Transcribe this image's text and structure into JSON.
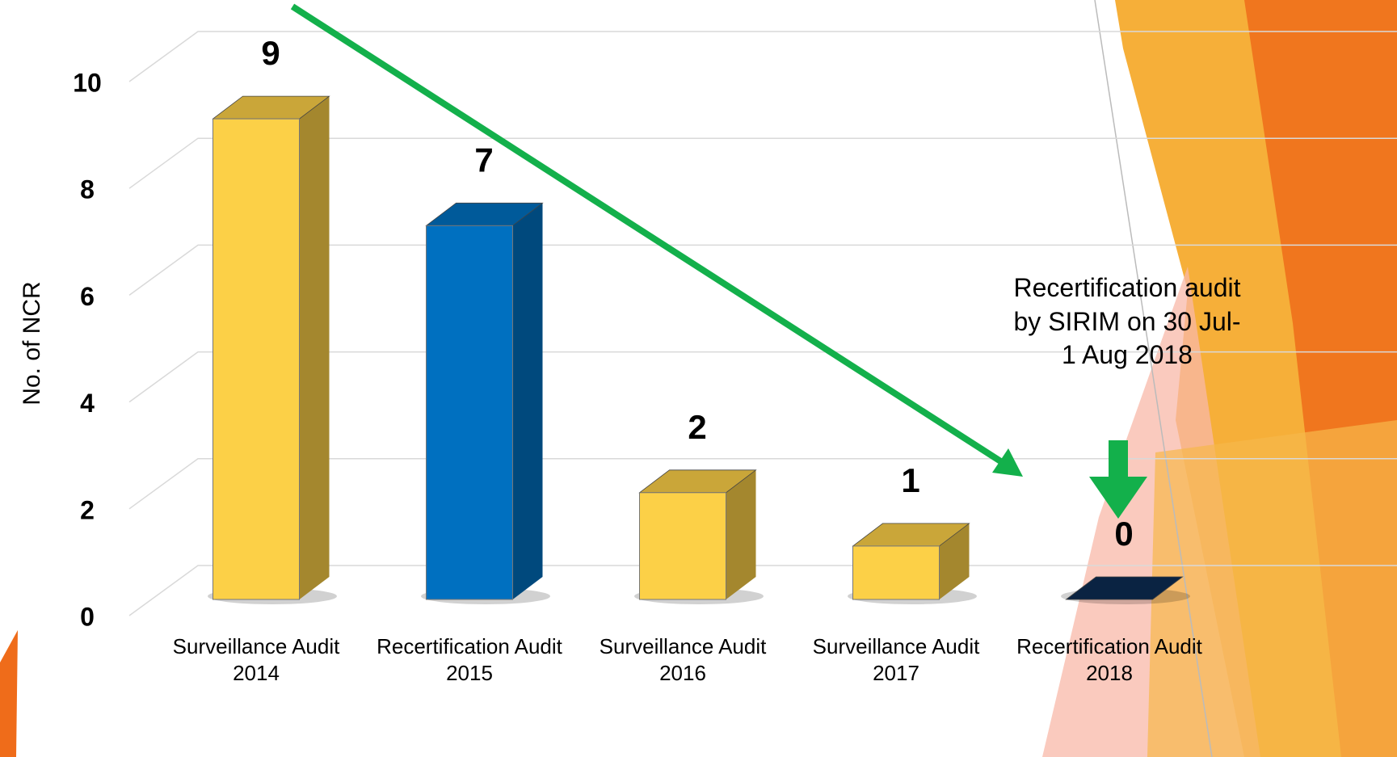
{
  "chart_data": {
    "type": "bar3d",
    "y_label": "No. of NCR",
    "categories": [
      "Surveillance Audit 2014",
      "Recertification Audit 2015",
      "Surveillance Audit 2016",
      "Surveillance Audit 2017",
      "Recertification Audit 2018"
    ],
    "values": [
      9,
      7,
      2,
      1,
      0
    ],
    "colors": [
      "#fcd047",
      "#0070c0",
      "#fcd047",
      "#fcd047",
      "#0d2c52"
    ],
    "ylim": [
      0,
      10
    ],
    "yticks": [
      0,
      2,
      4,
      6,
      8,
      10
    ],
    "grid": true,
    "annotation": "Recertification audit by SIRIM on 30 Jul-1 Aug 2018"
  }
}
